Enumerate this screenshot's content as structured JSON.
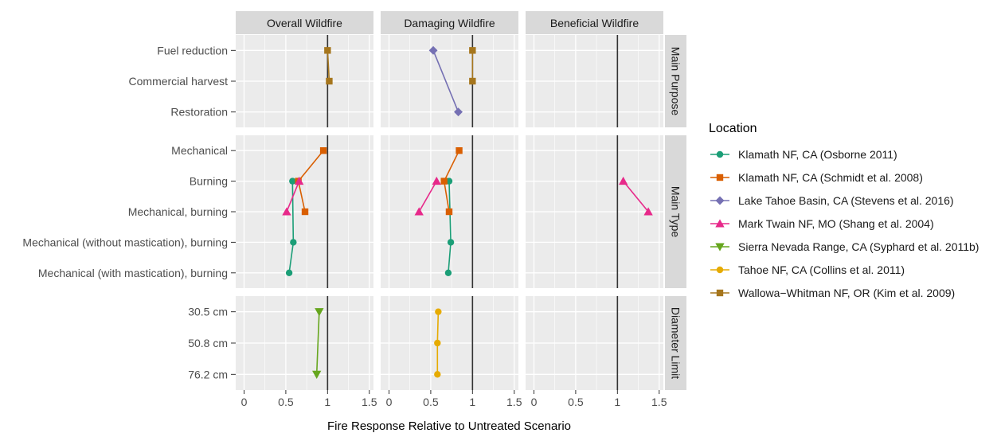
{
  "chart_data": {
    "type": "scatter",
    "xlabel": "Fire Response Relative to Untreated Scenario",
    "ylabel": "",
    "xlim": [
      -0.1,
      1.55
    ],
    "xticks": [
      0,
      0.5,
      1,
      1.5
    ],
    "x_tick_labels": [
      "0",
      "0.5",
      "1",
      "1.5"
    ],
    "reference_line_x": 1,
    "panels_x": [
      "Overall Wildfire",
      "Damaging Wildfire",
      "Beneficial Wildfire"
    ],
    "panels_y": [
      {
        "label": "Main Purpose",
        "categories": [
          "Fuel reduction",
          "Commercial harvest",
          "Restoration"
        ]
      },
      {
        "label": "Main Type",
        "categories": [
          "Mechanical",
          "Burning",
          "Mechanical, burning",
          "Mechanical (without mastication), burning",
          "Mechanical (with mastication), burning"
        ]
      },
      {
        "label": "Diameter Limit",
        "categories": [
          "30.5 cm",
          "50.8 cm",
          "76.2 cm"
        ]
      }
    ],
    "legend_title": "Location",
    "legend_position": "right",
    "grid": true,
    "series": [
      {
        "name": "Klamath NF, CA (Osborne 2011)",
        "color": "#1b9e77",
        "marker": "circle",
        "points": [
          {
            "col": 0,
            "row": 1,
            "category": "Burning",
            "x": 0.58
          },
          {
            "col": 0,
            "row": 1,
            "category": "Mechanical (without mastication), burning",
            "x": 0.59
          },
          {
            "col": 0,
            "row": 1,
            "category": "Mechanical (with mastication), burning",
            "x": 0.54
          },
          {
            "col": 1,
            "row": 1,
            "category": "Burning",
            "x": 0.72
          },
          {
            "col": 1,
            "row": 1,
            "category": "Mechanical (without mastication), burning",
            "x": 0.74
          },
          {
            "col": 1,
            "row": 1,
            "category": "Mechanical (with mastication), burning",
            "x": 0.71
          }
        ]
      },
      {
        "name": "Klamath NF, CA (Schmidt et al. 2008)",
        "color": "#d95f02",
        "marker": "square",
        "points": [
          {
            "col": 0,
            "row": 1,
            "category": "Mechanical",
            "x": 0.95
          },
          {
            "col": 0,
            "row": 1,
            "category": "Burning",
            "x": 0.65
          },
          {
            "col": 0,
            "row": 1,
            "category": "Mechanical, burning",
            "x": 0.73
          },
          {
            "col": 1,
            "row": 1,
            "category": "Mechanical",
            "x": 0.84
          },
          {
            "col": 1,
            "row": 1,
            "category": "Burning",
            "x": 0.66
          },
          {
            "col": 1,
            "row": 1,
            "category": "Mechanical, burning",
            "x": 0.72
          }
        ]
      },
      {
        "name": "Lake Tahoe Basin, CA (Stevens et al. 2016)",
        "color": "#7570b3",
        "marker": "diamond",
        "points": [
          {
            "col": 1,
            "row": 0,
            "category": "Fuel reduction",
            "x": 0.53
          },
          {
            "col": 1,
            "row": 0,
            "category": "Restoration",
            "x": 0.83
          }
        ]
      },
      {
        "name": "Mark Twain NF, MO (Shang et al. 2004)",
        "color": "#e7298a",
        "marker": "triangle-up",
        "points": [
          {
            "col": 0,
            "row": 1,
            "category": "Burning",
            "x": 0.66
          },
          {
            "col": 0,
            "row": 1,
            "category": "Mechanical, burning",
            "x": 0.51
          },
          {
            "col": 1,
            "row": 1,
            "category": "Burning",
            "x": 0.57
          },
          {
            "col": 1,
            "row": 1,
            "category": "Mechanical, burning",
            "x": 0.36
          },
          {
            "col": 2,
            "row": 1,
            "category": "Burning",
            "x": 1.07
          },
          {
            "col": 2,
            "row": 1,
            "category": "Mechanical, burning",
            "x": 1.37
          }
        ]
      },
      {
        "name": "Sierra Nevada Range, CA (Syphard et al. 2011b)",
        "color": "#66a61e",
        "marker": "triangle-down",
        "points": [
          {
            "col": 0,
            "row": 2,
            "category": "30.5 cm",
            "x": 0.9
          },
          {
            "col": 0,
            "row": 2,
            "category": "76.2 cm",
            "x": 0.87
          }
        ]
      },
      {
        "name": "Tahoe NF, CA (Collins et al. 2011)",
        "color": "#e6ab02",
        "marker": "circle",
        "points": [
          {
            "col": 1,
            "row": 2,
            "category": "30.5 cm",
            "x": 0.59
          },
          {
            "col": 1,
            "row": 2,
            "category": "50.8 cm",
            "x": 0.58
          },
          {
            "col": 1,
            "row": 2,
            "category": "76.2 cm",
            "x": 0.58
          }
        ]
      },
      {
        "name": "Wallowa−Whitman NF, OR (Kim et al. 2009)",
        "color": "#a6761d",
        "marker": "square",
        "points": [
          {
            "col": 0,
            "row": 0,
            "category": "Fuel reduction",
            "x": 1.0
          },
          {
            "col": 0,
            "row": 0,
            "category": "Commercial harvest",
            "x": 1.02
          },
          {
            "col": 1,
            "row": 0,
            "category": "Fuel reduction",
            "x": 1.0
          },
          {
            "col": 1,
            "row": 0,
            "category": "Commercial harvest",
            "x": 1.0
          }
        ]
      }
    ]
  }
}
